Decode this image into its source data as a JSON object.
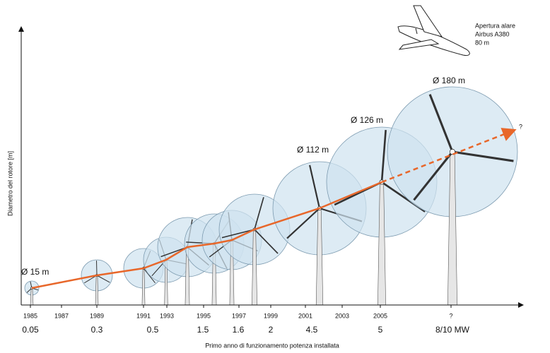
{
  "y_axis_label": "Diametro del rotore [m]",
  "x_axis_label": "Primo anno di funzionamento potenza installata",
  "years": [
    "1985",
    "1987",
    "1989",
    "1991",
    "1993",
    "1995",
    "1997",
    "1999",
    "2001",
    "2003",
    "2005",
    "?"
  ],
  "powers": [
    "0.05",
    "0.3",
    "0.5",
    "1.5",
    "1.6",
    "2",
    "4.5",
    "5",
    "8/10 MW"
  ],
  "diameter_labels": [
    "Ø 15 m",
    "Ø 112 m",
    "Ø 126 m",
    "Ø 180 m"
  ],
  "future_marker": "?",
  "airplane_note": [
    "Apertura alare",
    "Airbus A380",
    "80 m"
  ]
}
